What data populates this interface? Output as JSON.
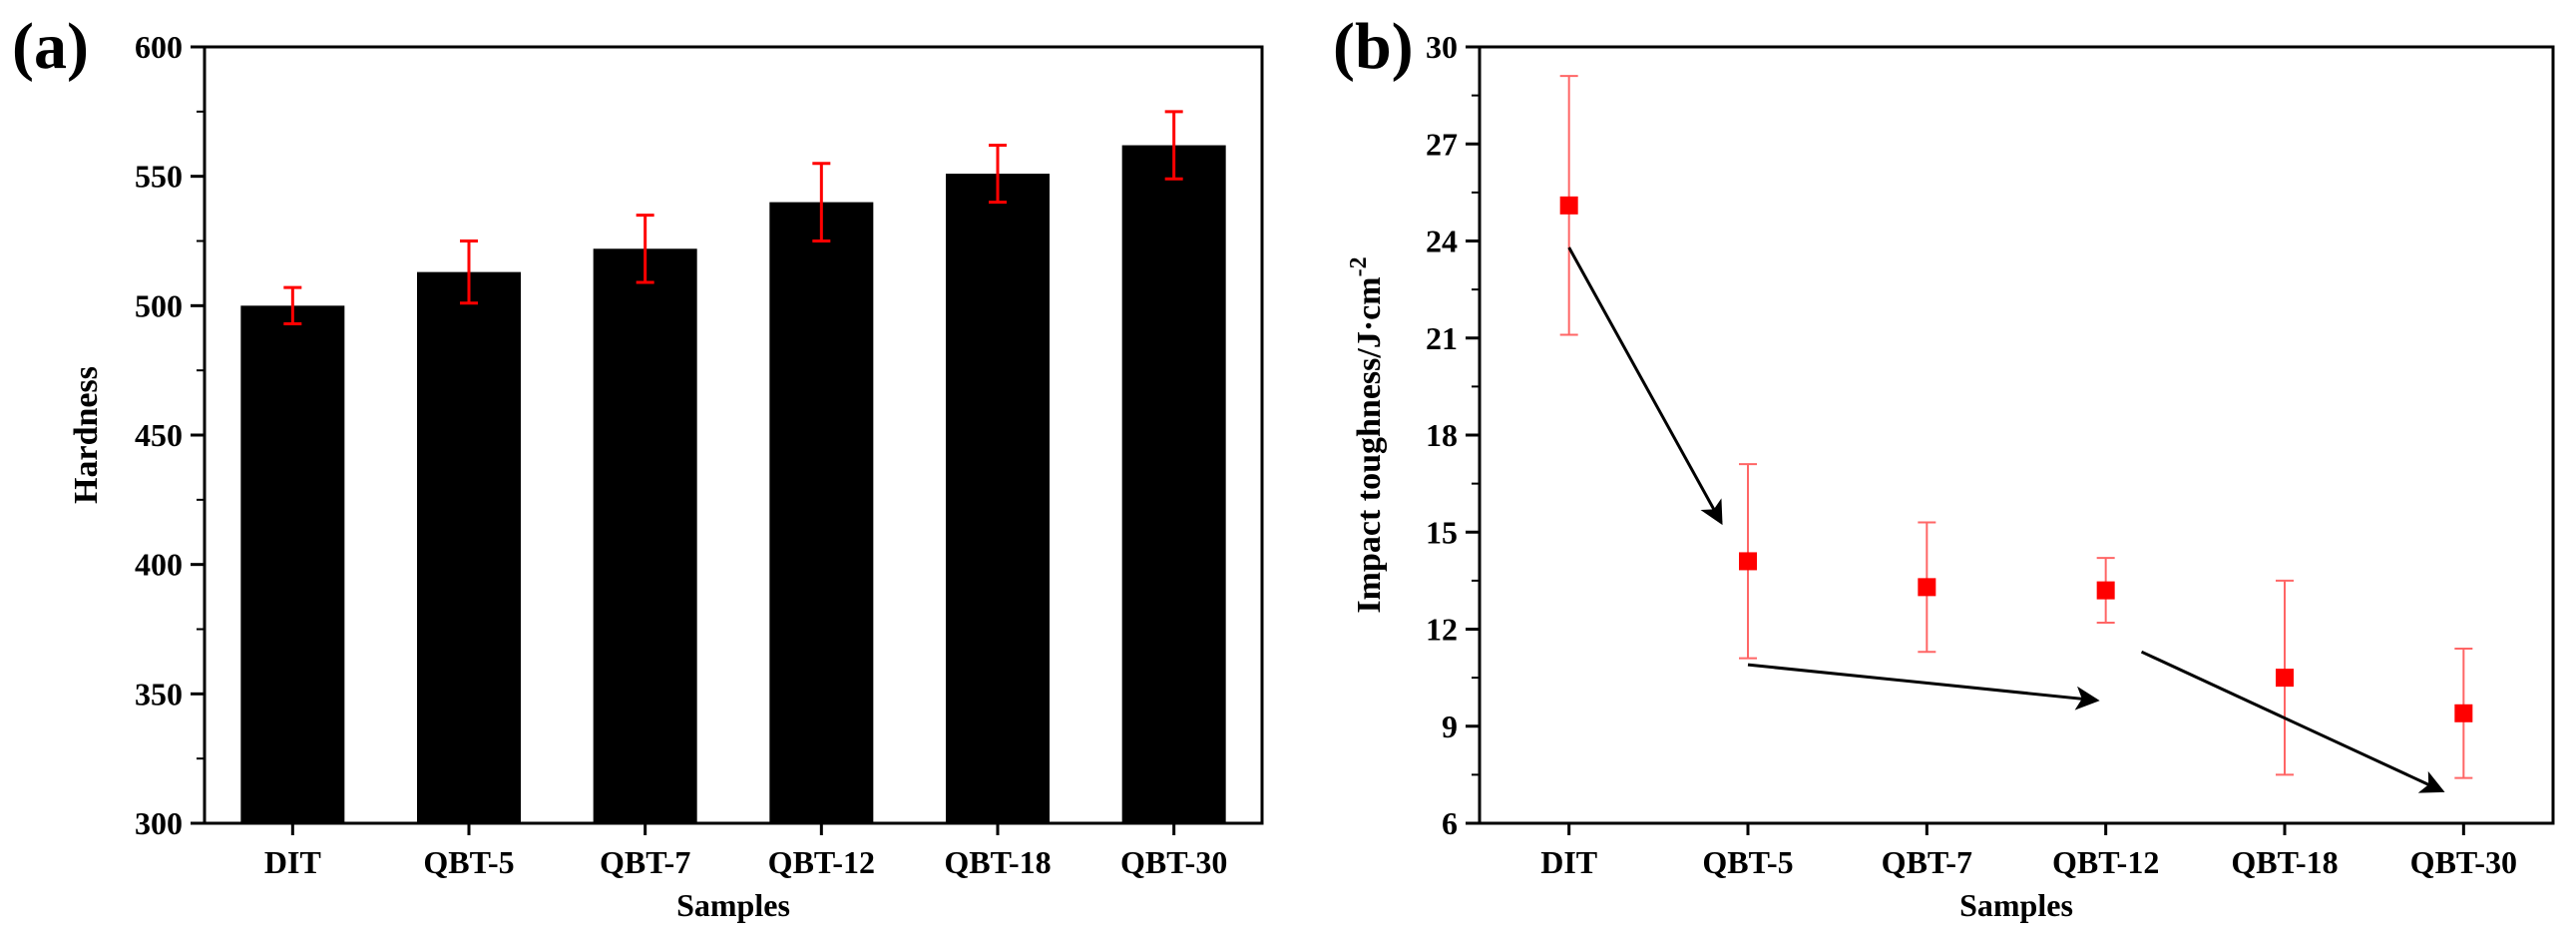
{
  "chart_data": [
    {
      "type": "bar",
      "panel_label": "(a)",
      "xlabel": "Samples",
      "ylabel": "Hardness",
      "categories": [
        "DIT",
        "QBT-5",
        "QBT-7",
        "QBT-12",
        "QBT-18",
        "QBT-30"
      ],
      "values": [
        500,
        513,
        522,
        540,
        551,
        562
      ],
      "errors": [
        7,
        12,
        13,
        15,
        11,
        13
      ],
      "ylim": [
        300,
        600
      ],
      "yticks": [
        300,
        350,
        400,
        450,
        500,
        550,
        600
      ],
      "bar_color": "#000000",
      "error_color": "#ff0000",
      "grid": false
    },
    {
      "type": "scatter",
      "panel_label": "(b)",
      "xlabel": "Samples",
      "ylabel": "Impact toughness/J·cm",
      "ylabel_superscript": "-2",
      "categories": [
        "DIT",
        "QBT-5",
        "QBT-7",
        "QBT-12",
        "QBT-18",
        "QBT-30"
      ],
      "values": [
        25.1,
        14.1,
        13.3,
        13.2,
        10.5,
        9.4
      ],
      "errors": [
        4.0,
        3.0,
        2.0,
        1.0,
        3.0,
        2.0
      ],
      "ylim": [
        6,
        30
      ],
      "yticks": [
        6,
        9,
        12,
        15,
        18,
        21,
        24,
        27,
        30
      ],
      "marker_color": "#ff0000",
      "error_color": "#ff6666",
      "grid": false,
      "annotations": [
        {
          "type": "arrow",
          "from": [
            0,
            23.8
          ],
          "to": [
            0.85,
            15.3
          ]
        },
        {
          "type": "arrow",
          "from": [
            1.0,
            10.9
          ],
          "to": [
            2.95,
            9.8
          ]
        },
        {
          "type": "arrow",
          "from": [
            3.2,
            11.3
          ],
          "to": [
            4.88,
            7.0
          ]
        }
      ]
    }
  ]
}
